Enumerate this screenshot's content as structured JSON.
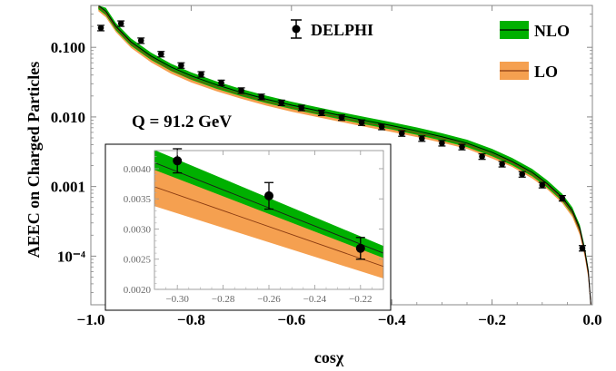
{
  "chart_data": [
    {
      "type": "line",
      "title": "",
      "xlabel": "cosχ",
      "ylabel": "AEEC on Charged Particles",
      "xlim": [
        -1.0,
        0.0
      ],
      "ylim": [
        2e-05,
        0.4
      ],
      "yscale": "log",
      "grid": false,
      "legend_position": "top-right",
      "annotation": "Q = 91.2 GeV",
      "x_ticks": [
        "−1.0",
        "−0.8",
        "−0.6",
        "−0.4",
        "−0.2",
        "0.0"
      ],
      "x_tick_values": [
        -1.0,
        -0.8,
        -0.6,
        -0.4,
        -0.2,
        0.0
      ],
      "y_ticks": [
        "10⁻⁴",
        "0.001",
        "0.010",
        "0.100"
      ],
      "y_tick_values": [
        0.0001,
        0.001,
        0.01,
        0.1
      ],
      "series": [
        {
          "name": "DELPHI",
          "kind": "points",
          "color": "#000000",
          "x": [
            -0.98,
            -0.94,
            -0.9,
            -0.86,
            -0.82,
            -0.78,
            -0.74,
            -0.7,
            -0.66,
            -0.62,
            -0.58,
            -0.54,
            -0.5,
            -0.46,
            -0.42,
            -0.38,
            -0.34,
            -0.3,
            -0.26,
            -0.22,
            -0.18,
            -0.14,
            -0.1,
            -0.06,
            -0.02
          ],
          "y": [
            0.19,
            0.22,
            0.125,
            0.08,
            0.055,
            0.041,
            0.031,
            0.024,
            0.0195,
            0.016,
            0.0135,
            0.0115,
            0.0098,
            0.0083,
            0.0072,
            0.0058,
            0.0049,
            0.0042,
            0.0037,
            0.0027,
            0.0021,
            0.0015,
            0.00105,
            0.00068,
            0.00013
          ]
        },
        {
          "name": "NLO",
          "kind": "band",
          "color": "#00b000",
          "line_color": "#000000",
          "x": [
            -0.985,
            -0.97,
            -0.95,
            -0.92,
            -0.88,
            -0.84,
            -0.8,
            -0.75,
            -0.7,
            -0.65,
            -0.6,
            -0.55,
            -0.5,
            -0.45,
            -0.4,
            -0.35,
            -0.3,
            -0.25,
            -0.2,
            -0.16,
            -0.12,
            -0.09,
            -0.06,
            -0.04,
            -0.025,
            -0.015,
            -0.008,
            -0.003
          ],
          "y": [
            0.4,
            0.33,
            0.2,
            0.12,
            0.075,
            0.052,
            0.039,
            0.029,
            0.0225,
            0.018,
            0.0148,
            0.0124,
            0.0104,
            0.0088,
            0.0075,
            0.0063,
            0.0052,
            0.0042,
            0.0031,
            0.0023,
            0.0016,
            0.0011,
            0.0007,
            0.00045,
            0.00025,
            0.00012,
            6e-05,
            2e-05
          ]
        },
        {
          "name": "LO",
          "kind": "band",
          "color": "#f5a050",
          "line_color": "#8a3a10",
          "x": [
            -0.985,
            -0.97,
            -0.95,
            -0.92,
            -0.88,
            -0.84,
            -0.8,
            -0.75,
            -0.7,
            -0.65,
            -0.6,
            -0.55,
            -0.5,
            -0.45,
            -0.4,
            -0.35,
            -0.3,
            -0.25,
            -0.2,
            -0.16,
            -0.12,
            -0.09,
            -0.06,
            -0.04,
            -0.025,
            -0.015,
            -0.008,
            -0.003
          ],
          "y": [
            0.38,
            0.31,
            0.19,
            0.113,
            0.07,
            0.048,
            0.036,
            0.027,
            0.021,
            0.0167,
            0.0137,
            0.0115,
            0.0097,
            0.0082,
            0.007,
            0.0059,
            0.0049,
            0.004,
            0.0029,
            0.0022,
            0.0015,
            0.00105,
            0.00066,
            0.00042,
            0.00023,
            0.00011,
            5.5e-05,
            2e-05
          ]
        }
      ]
    },
    {
      "type": "line",
      "title": "",
      "xlabel": "",
      "ylabel": "",
      "xlim": [
        -0.31,
        -0.21
      ],
      "ylim": [
        0.002,
        0.0043
      ],
      "yscale": "linear",
      "x_ticks": [
        "−0.30",
        "−0.28",
        "−0.26",
        "−0.24",
        "−0.22"
      ],
      "x_tick_values": [
        -0.3,
        -0.28,
        -0.26,
        -0.24,
        -0.22
      ],
      "y_ticks": [
        "0.0020",
        "0.0025",
        "0.0030",
        "0.0035",
        "0.0040"
      ],
      "y_tick_values": [
        0.002,
        0.0025,
        0.003,
        0.0035,
        0.004
      ],
      "series": [
        {
          "name": "DELPHI",
          "kind": "points",
          "x": [
            -0.3,
            -0.26,
            -0.22
          ],
          "y": [
            0.00413,
            0.00355,
            0.00268
          ],
          "yerr": [
            0.0002,
            0.00022,
            0.00018
          ]
        },
        {
          "name": "NLO",
          "kind": "band",
          "x": [
            -0.31,
            -0.21
          ],
          "center": [
            0.0041,
            0.0026
          ],
          "lower": [
            0.00398,
            0.00252
          ],
          "upper": [
            0.00431,
            0.00272
          ]
        },
        {
          "name": "LO",
          "kind": "band",
          "x": [
            -0.31,
            -0.21
          ],
          "center": [
            0.0037,
            0.00238
          ],
          "lower": [
            0.00338,
            0.00218
          ],
          "upper": [
            0.00412,
            0.00262
          ]
        }
      ]
    }
  ]
}
